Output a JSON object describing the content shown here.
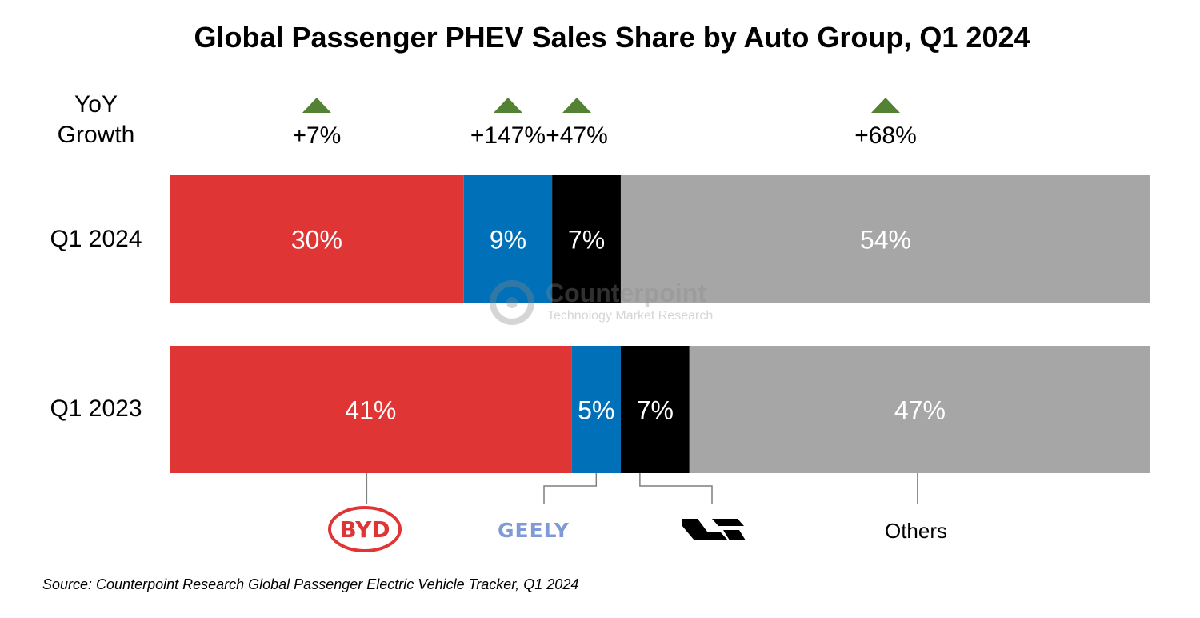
{
  "title": "Global Passenger PHEV Sales Share by Auto Group, Q1 2024",
  "yoy_label_line1": "YoY",
  "yoy_label_line2": "Growth",
  "source": "Source: Counterpoint Research Global Passenger Electric Vehicle Tracker, Q1 2024",
  "watermark": {
    "name": "Counterpoint",
    "sub": "Technology Market Research"
  },
  "legend": {
    "byd_logo_text": "BYD",
    "geely_logo_text": "GEELY",
    "others_label": "Others",
    "li_logo_icon": "li-auto-logo-icon"
  },
  "colors": {
    "byd": "#e03535",
    "geely": "#0070b8",
    "li": "#000000",
    "others": "#a6a6a6",
    "growth_arrow": "#548235"
  },
  "chart_data": {
    "type": "bar",
    "orientation": "horizontal",
    "stacked": true,
    "categories": [
      "Q1 2024",
      "Q1 2023"
    ],
    "series": [
      {
        "values": [
          30,
          41
        ],
        "labels": [
          "30%",
          "41%"
        ]
      },
      {
        "values": [
          9,
          5
        ],
        "labels": [
          "9%",
          "5%"
        ]
      },
      {
        "values": [
          7,
          7
        ],
        "labels": [
          "7%",
          "7%"
        ]
      },
      {
        "name": "Others",
        "values": [
          54,
          47
        ],
        "labels": [
          "54%",
          "47%"
        ]
      }
    ],
    "yoy_growth": [
      "+7%",
      "+147%",
      "+47%",
      "+68%"
    ],
    "xlim": [
      0,
      100
    ],
    "grid": false,
    "legend_position": "bottom"
  }
}
